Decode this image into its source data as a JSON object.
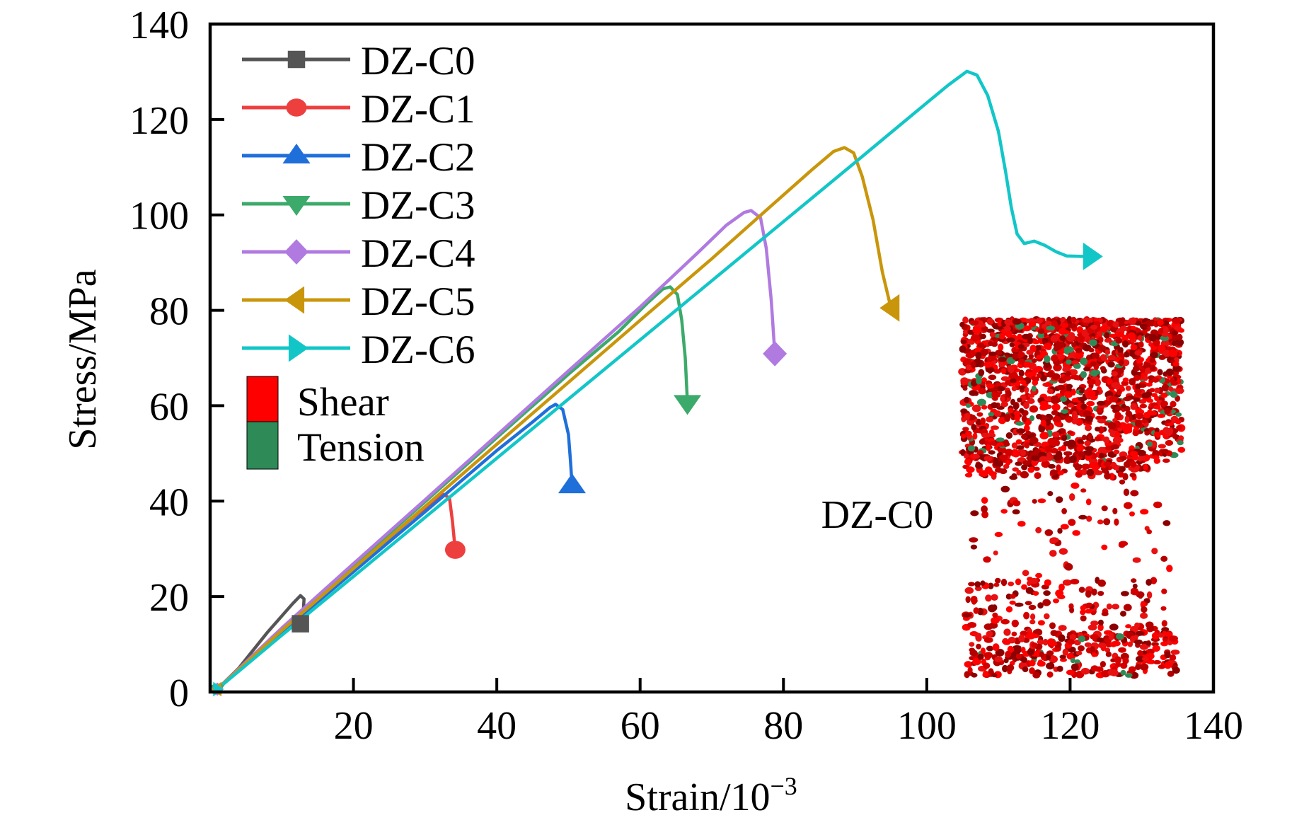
{
  "chart_data": {
    "type": "line",
    "title": "",
    "xlabel": "Strain/10",
    "xlabel_superscript": "−3",
    "ylabel": "Stress/MPa",
    "xlim": [
      0,
      140
    ],
    "ylim": [
      0,
      140
    ],
    "xticks": [
      20,
      40,
      60,
      80,
      100,
      120,
      140
    ],
    "yticks": [
      0,
      20,
      40,
      60,
      80,
      100,
      120,
      140
    ],
    "grid": false,
    "legend_placement": "top-left",
    "series": [
      {
        "name": "DZ-C0",
        "color": "#555555",
        "marker": "square",
        "points": [
          [
            1,
            0.6
          ],
          [
            4,
            5
          ],
          [
            8,
            12.5
          ],
          [
            11.5,
            18.5
          ],
          [
            12.6,
            20.2
          ],
          [
            13.1,
            19.5
          ],
          [
            13.0,
            17.0
          ],
          [
            12.6,
            14.3
          ]
        ],
        "marker_at": [
          12.6,
          14.3
        ]
      },
      {
        "name": "DZ-C1",
        "color": "#ee3f3f",
        "marker": "circle",
        "points": [
          [
            1,
            0.6
          ],
          [
            10,
            12.8
          ],
          [
            20,
            25.8
          ],
          [
            28,
            36.2
          ],
          [
            31,
            39.8
          ],
          [
            32.6,
            41.4
          ],
          [
            33.4,
            40.6
          ],
          [
            33.8,
            36
          ],
          [
            34.2,
            29.8
          ]
        ],
        "marker_at": [
          34.2,
          29.8
        ]
      },
      {
        "name": "DZ-C2",
        "color": "#1f6fdb",
        "marker": "triangle-up",
        "points": [
          [
            1,
            0.6
          ],
          [
            10,
            12.6
          ],
          [
            20,
            25.2
          ],
          [
            30,
            37.8
          ],
          [
            40,
            50.6
          ],
          [
            45,
            56.6
          ],
          [
            47.4,
            59.6
          ],
          [
            48.2,
            60.3
          ],
          [
            49.2,
            59.2
          ],
          [
            50,
            54
          ],
          [
            50.3,
            48
          ],
          [
            50.5,
            43.3
          ]
        ],
        "marker_at": [
          50.5,
          43.3
        ]
      },
      {
        "name": "DZ-C3",
        "color": "#3caa6a",
        "marker": "triangle-down",
        "points": [
          [
            1,
            0.6
          ],
          [
            10,
            13.2
          ],
          [
            20,
            26.6
          ],
          [
            30,
            39.9
          ],
          [
            40,
            53.3
          ],
          [
            50,
            66.6
          ],
          [
            57,
            75.5
          ],
          [
            61,
            81.5
          ],
          [
            63.2,
            84.5
          ],
          [
            64.2,
            84.9
          ],
          [
            65.2,
            83.3
          ],
          [
            65.8,
            78
          ],
          [
            66.3,
            70
          ],
          [
            66.6,
            60.6
          ]
        ],
        "marker_at": [
          66.6,
          60.6
        ]
      },
      {
        "name": "DZ-C4",
        "color": "#b07ae0",
        "marker": "diamond",
        "points": [
          [
            1,
            0.6
          ],
          [
            10,
            13.4
          ],
          [
            20,
            26.9
          ],
          [
            30,
            40.3
          ],
          [
            40,
            53.8
          ],
          [
            50,
            67.3
          ],
          [
            60,
            80.7
          ],
          [
            68,
            92
          ],
          [
            72,
            97.8
          ],
          [
            74.5,
            100.5
          ],
          [
            75.5,
            100.9
          ],
          [
            76.8,
            99.4
          ],
          [
            77.6,
            93
          ],
          [
            78.3,
            82
          ],
          [
            78.8,
            70.9
          ]
        ],
        "marker_at": [
          78.8,
          70.9
        ]
      },
      {
        "name": "DZ-C5",
        "color": "#c9960b",
        "marker": "triangle-left",
        "points": [
          [
            1,
            0.6
          ],
          [
            10,
            12.9
          ],
          [
            20,
            25.9
          ],
          [
            30,
            38.9
          ],
          [
            40,
            51.9
          ],
          [
            50,
            64.9
          ],
          [
            60,
            77.9
          ],
          [
            70,
            90.8
          ],
          [
            78,
            101.5
          ],
          [
            84,
            109.5
          ],
          [
            87,
            113.3
          ],
          [
            88.5,
            114.1
          ],
          [
            89.8,
            113
          ],
          [
            91,
            108
          ],
          [
            92.5,
            99
          ],
          [
            93.8,
            88
          ],
          [
            95,
            80.5
          ]
        ],
        "marker_at": [
          95.1,
          80.5
        ]
      },
      {
        "name": "DZ-C6",
        "color": "#12c6c8",
        "marker": "triangle-right",
        "points": [
          [
            1,
            0.6
          ],
          [
            10,
            11.9
          ],
          [
            20,
            24.2
          ],
          [
            30,
            36.6
          ],
          [
            40,
            49
          ],
          [
            50,
            61.4
          ],
          [
            60,
            73.8
          ],
          [
            70,
            86.2
          ],
          [
            80,
            98.6
          ],
          [
            90,
            111
          ],
          [
            96,
            118.5
          ],
          [
            100,
            123.5
          ],
          [
            103,
            127.2
          ],
          [
            105.6,
            130.1
          ],
          [
            107,
            129.3
          ],
          [
            108.5,
            125
          ],
          [
            110,
            117.5
          ],
          [
            111,
            109
          ],
          [
            111.8,
            101.5
          ],
          [
            112.6,
            96
          ],
          [
            113.6,
            94
          ],
          [
            115,
            94.5
          ],
          [
            116.5,
            93.6
          ],
          [
            118,
            92.3
          ],
          [
            119.5,
            91.4
          ],
          [
            121.5,
            91.3
          ],
          [
            123,
            91.3
          ]
        ],
        "marker_at": [
          122.9,
          91.3
        ]
      }
    ],
    "failure_legend": [
      {
        "name": "Shear",
        "color": "#ff0000"
      },
      {
        "name": "Tension",
        "color": "#2e8b57"
      }
    ],
    "annotations": [
      {
        "text": "DZ-C0",
        "note": "inset: particle failure distribution image (shear cracks red, tension cracks green)"
      }
    ]
  }
}
